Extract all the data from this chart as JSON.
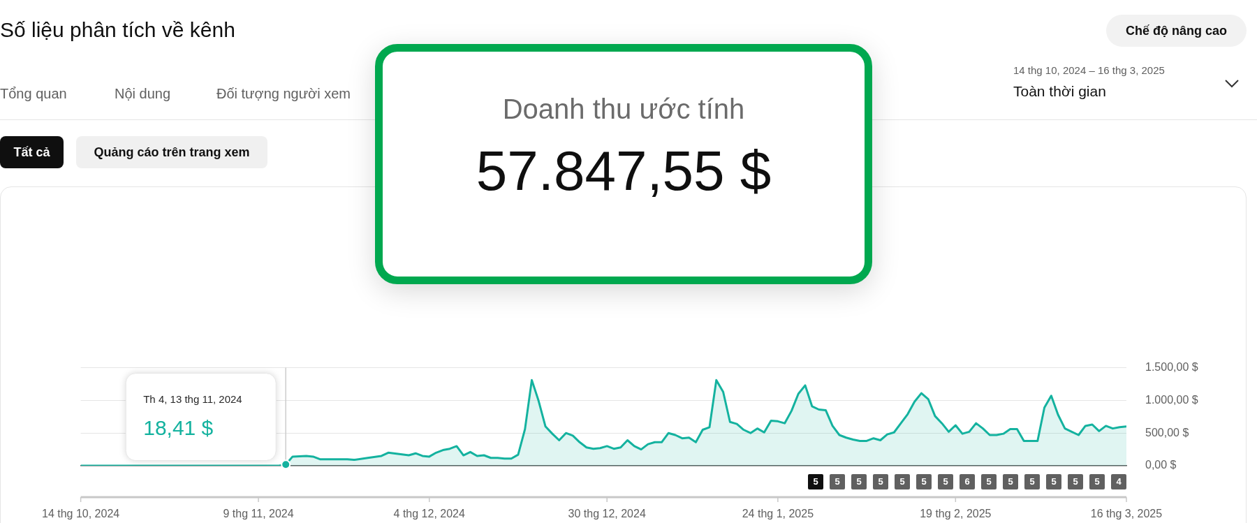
{
  "chart_data": {
    "type": "area",
    "title": "Số liệu phân tích về kênh",
    "subtitle": "Doanh thu ước tính",
    "xlim": [
      "2024-10-14",
      "2025-03-16"
    ],
    "xticks": [
      {
        "value": "2024-10-14",
        "label": "14 thg 10, 2024"
      },
      {
        "value": "2024-11-09",
        "label": "9 thg 11, 2024"
      },
      {
        "value": "2024-12-04",
        "label": "4 thg 12, 2024"
      },
      {
        "value": "2024-12-30",
        "label": "30 thg 12, 2024"
      },
      {
        "value": "2025-01-24",
        "label": "24 thg 1, 2025"
      },
      {
        "value": "2025-02-19",
        "label": "19 thg 2, 2025"
      },
      {
        "value": "2025-03-16",
        "label": "16 thg 3, 2025"
      }
    ],
    "ylim": [
      0,
      1500
    ],
    "yticks": [
      {
        "value": 0,
        "label": "0,00 $"
      },
      {
        "value": 500,
        "label": "500,00 $"
      },
      {
        "value": 1000,
        "label": "1.000,00 $"
      },
      {
        "value": 1500,
        "label": "1.500,00 $"
      }
    ],
    "grid": "y",
    "legend": false,
    "series": [
      {
        "color": "#14b29f",
        "x": [
          "2024-10-14",
          "2024-11-12",
          "2024-11-13",
          "2024-11-14",
          "2024-11-16",
          "2024-11-17",
          "2024-11-18",
          "2024-11-19",
          "2024-11-22",
          "2024-11-23",
          "2024-11-25",
          "2024-11-27",
          "2024-11-28",
          "2024-12-01",
          "2024-12-02",
          "2024-12-03",
          "2024-12-04",
          "2024-12-05",
          "2024-12-06",
          "2024-12-07",
          "2024-12-08",
          "2024-12-09",
          "2024-12-10",
          "2024-12-11",
          "2024-12-12",
          "2024-12-13",
          "2024-12-14",
          "2024-12-15",
          "2024-12-16",
          "2024-12-17",
          "2024-12-18",
          "2024-12-19",
          "2024-12-20",
          "2024-12-21",
          "2024-12-22",
          "2024-12-23",
          "2024-12-24",
          "2024-12-25",
          "2024-12-26",
          "2024-12-27",
          "2024-12-28",
          "2024-12-29",
          "2024-12-30",
          "2024-12-31",
          "2025-01-01",
          "2025-01-02",
          "2025-01-03",
          "2025-01-04",
          "2025-01-05",
          "2025-01-06",
          "2025-01-07",
          "2025-01-08",
          "2025-01-09",
          "2025-01-10",
          "2025-01-11",
          "2025-01-12",
          "2025-01-13",
          "2025-01-14",
          "2025-01-15",
          "2025-01-16",
          "2025-01-17",
          "2025-01-18",
          "2025-01-19",
          "2025-01-20",
          "2025-01-21",
          "2025-01-22",
          "2025-01-23",
          "2025-01-24",
          "2025-01-25",
          "2025-01-26",
          "2025-01-27",
          "2025-01-28",
          "2025-01-29",
          "2025-01-30",
          "2025-01-31",
          "2025-02-01",
          "2025-02-02",
          "2025-02-03",
          "2025-02-04",
          "2025-02-05",
          "2025-02-06",
          "2025-02-07",
          "2025-02-08",
          "2025-02-09",
          "2025-02-10",
          "2025-02-11",
          "2025-02-12",
          "2025-02-13",
          "2025-02-14",
          "2025-02-15",
          "2025-02-16",
          "2025-02-17",
          "2025-02-18",
          "2025-02-19",
          "2025-02-20",
          "2025-02-21",
          "2025-02-22",
          "2025-02-23",
          "2025-02-24",
          "2025-02-25",
          "2025-02-26",
          "2025-02-27",
          "2025-02-28",
          "2025-03-01",
          "2025-03-02",
          "2025-03-03",
          "2025-03-04",
          "2025-03-05",
          "2025-03-06",
          "2025-03-07",
          "2025-03-08",
          "2025-03-09",
          "2025-03-10",
          "2025-03-11",
          "2025-03-12",
          "2025-03-13",
          "2025-03-14",
          "2025-03-15",
          "2025-03-16"
        ],
        "values": [
          0,
          0,
          18.41,
          140,
          150,
          140,
          100,
          100,
          100,
          90,
          120,
          150,
          200,
          160,
          190,
          150,
          140,
          200,
          240,
          260,
          300,
          160,
          210,
          150,
          160,
          120,
          120,
          110,
          110,
          170,
          560,
          1310,
          990,
          600,
          490,
          390,
          500,
          460,
          360,
          280,
          260,
          270,
          300,
          260,
          280,
          390,
          300,
          250,
          330,
          360,
          360,
          500,
          470,
          420,
          430,
          360,
          550,
          590,
          1310,
          1130,
          670,
          640,
          550,
          500,
          570,
          510,
          690,
          680,
          650,
          840,
          1100,
          1230,
          910,
          860,
          850,
          610,
          470,
          430,
          400,
          380,
          380,
          420,
          390,
          480,
          510,
          650,
          790,
          980,
          1110,
          1020,
          760,
          650,
          520,
          620,
          490,
          520,
          650,
          570,
          470,
          470,
          490,
          560,
          560,
          380,
          380,
          380,
          890,
          1070,
          780,
          570,
          520,
          470,
          610,
          630,
          530,
          610,
          570,
          590,
          600
        ]
      }
    ],
    "ref_lines": [
      {
        "axis": "x",
        "value": "2024-11-13",
        "color": "#cccccc"
      }
    ],
    "annotations": [
      "Chế độ nâng cao",
      "Tổng quan",
      "Nội dung",
      "Đối tượng người xem",
      "14 thg 10, 2024 – 16 thg 3, 2025",
      "Toàn thời gian",
      "Tất cả",
      "Quảng cáo trên trang xem",
      "57.847,55 $",
      "Th 4, 13 thg 11, 2024",
      "18,41 $",
      "5",
      "5",
      "5",
      "5",
      "5",
      "5",
      "5",
      "6",
      "5",
      "5",
      "5",
      "5",
      "5",
      "5",
      "4"
    ]
  }
}
